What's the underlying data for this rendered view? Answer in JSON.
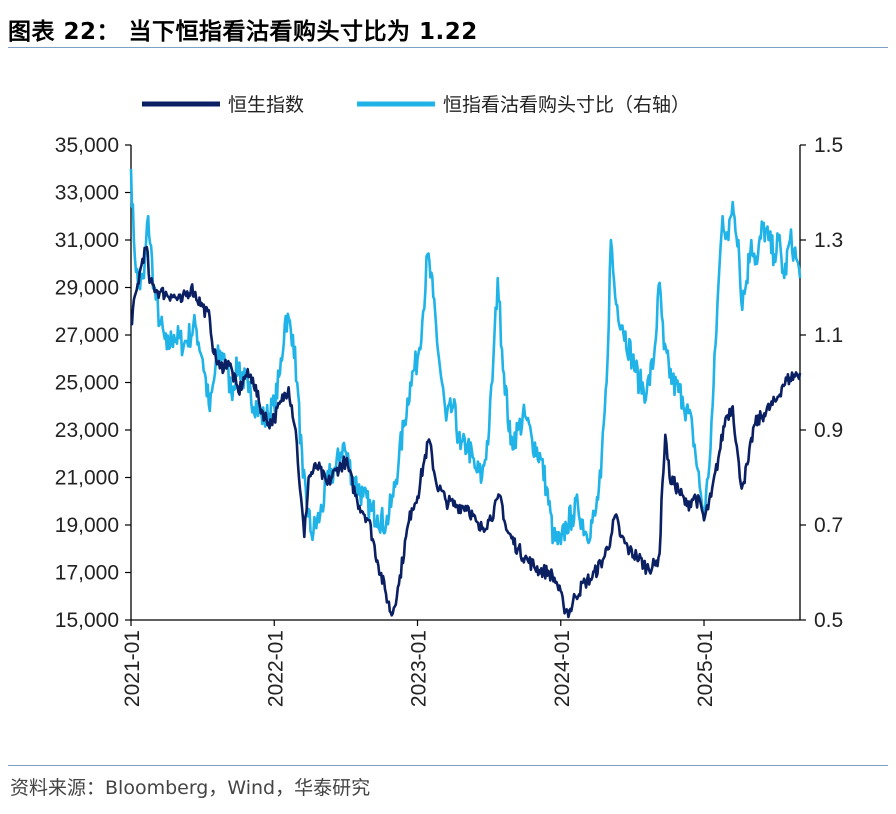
{
  "header": {
    "title": "图表 22：   当下恒指看沽看购头寸比为 1.22"
  },
  "source": "资料来源：Bloomberg，Wind，华泰研究",
  "colors": {
    "hsi": "#0b1f63",
    "ratio": "#1fb3e8",
    "axis": "#000000"
  },
  "chart_data": {
    "type": "line",
    "title": "当下恒指看沽看购头寸比为 1.22",
    "legend": [
      "恒生指数",
      "恒指看沽看购头寸比（右轴）"
    ],
    "legend_position": "top",
    "x_ticks": [
      "2021-01",
      "2022-01",
      "2023-01",
      "2024-01",
      "2025-01"
    ],
    "x_range": [
      2021.0,
      2025.67
    ],
    "y_left": {
      "range": [
        15000,
        35000
      ],
      "ticks": [
        15000,
        17000,
        19000,
        21000,
        23000,
        25000,
        27000,
        29000,
        31000,
        33000,
        35000
      ],
      "tick_labels": [
        "15,000",
        "17,000",
        "19,000",
        "21,000",
        "23,000",
        "25,000",
        "27,000",
        "29,000",
        "31,000",
        "33,000",
        "35,000"
      ]
    },
    "y_right": {
      "range": [
        0.5,
        1.5
      ],
      "ticks": [
        0.5,
        0.7,
        0.9,
        1.1,
        1.3,
        1.5
      ],
      "tick_labels": [
        "0.5",
        "0.7",
        "0.9",
        "1.1",
        "1.3",
        "1.5"
      ]
    },
    "series": [
      {
        "name": "恒生指数",
        "axis": "left",
        "points": [
          [
            2021.0,
            27500
          ],
          [
            2021.04,
            28900
          ],
          [
            2021.08,
            30200
          ],
          [
            2021.11,
            30700
          ],
          [
            2021.13,
            29200
          ],
          [
            2021.2,
            28800
          ],
          [
            2021.28,
            28700
          ],
          [
            2021.35,
            28400
          ],
          [
            2021.42,
            29000
          ],
          [
            2021.5,
            28200
          ],
          [
            2021.55,
            27700
          ],
          [
            2021.58,
            26200
          ],
          [
            2021.62,
            25600
          ],
          [
            2021.68,
            25900
          ],
          [
            2021.75,
            24600
          ],
          [
            2021.8,
            25300
          ],
          [
            2021.85,
            25200
          ],
          [
            2021.9,
            24000
          ],
          [
            2021.96,
            23300
          ],
          [
            2022.0,
            23500
          ],
          [
            2022.05,
            24200
          ],
          [
            2022.1,
            24800
          ],
          [
            2022.15,
            23000
          ],
          [
            2022.18,
            20500
          ],
          [
            2022.21,
            18500
          ],
          [
            2022.24,
            21000
          ],
          [
            2022.3,
            21500
          ],
          [
            2022.37,
            20700
          ],
          [
            2022.43,
            21300
          ],
          [
            2022.5,
            21700
          ],
          [
            2022.58,
            20000
          ],
          [
            2022.66,
            19200
          ],
          [
            2022.72,
            17500
          ],
          [
            2022.78,
            16100
          ],
          [
            2022.82,
            15200
          ],
          [
            2022.87,
            16500
          ],
          [
            2022.92,
            18500
          ],
          [
            2022.96,
            19700
          ],
          [
            2023.0,
            20200
          ],
          [
            2023.04,
            21500
          ],
          [
            2023.08,
            22600
          ],
          [
            2023.13,
            20800
          ],
          [
            2023.2,
            20000
          ],
          [
            2023.28,
            19800
          ],
          [
            2023.35,
            19800
          ],
          [
            2023.43,
            18800
          ],
          [
            2023.5,
            19200
          ],
          [
            2023.58,
            20200
          ],
          [
            2023.62,
            18800
          ],
          [
            2023.7,
            18000
          ],
          [
            2023.77,
            17500
          ],
          [
            2023.85,
            17100
          ],
          [
            2023.92,
            17000
          ],
          [
            2023.97,
            16600
          ],
          [
            2024.02,
            15600
          ],
          [
            2024.06,
            15300
          ],
          [
            2024.1,
            16000
          ],
          [
            2024.17,
            16600
          ],
          [
            2024.22,
            16800
          ],
          [
            2024.3,
            17600
          ],
          [
            2024.35,
            18500
          ],
          [
            2024.38,
            19400
          ],
          [
            2024.42,
            18500
          ],
          [
            2024.48,
            17900
          ],
          [
            2024.53,
            17700
          ],
          [
            2024.6,
            17200
          ],
          [
            2024.66,
            17300
          ],
          [
            2024.69,
            17800
          ],
          [
            2024.71,
            20800
          ],
          [
            2024.73,
            22800
          ],
          [
            2024.76,
            21000
          ],
          [
            2024.82,
            20500
          ],
          [
            2024.88,
            19800
          ],
          [
            2024.93,
            20200
          ],
          [
            2024.98,
            19800
          ],
          [
            2025.0,
            19200
          ],
          [
            2025.05,
            20200
          ],
          [
            2025.1,
            21800
          ],
          [
            2025.15,
            23500
          ],
          [
            2025.2,
            24000
          ],
          [
            2025.25,
            21000
          ],
          [
            2025.27,
            20700
          ],
          [
            2025.31,
            21700
          ],
          [
            2025.35,
            23200
          ],
          [
            2025.42,
            23700
          ],
          [
            2025.5,
            24200
          ],
          [
            2025.55,
            24900
          ],
          [
            2025.6,
            25200
          ],
          [
            2025.67,
            25400
          ]
        ]
      },
      {
        "name": "恒指看沽看购头寸比（右轴）",
        "axis": "right",
        "points": [
          [
            2021.0,
            1.45
          ],
          [
            2021.02,
            1.3
          ],
          [
            2021.05,
            1.2
          ],
          [
            2021.09,
            1.22
          ],
          [
            2021.12,
            1.35
          ],
          [
            2021.16,
            1.2
          ],
          [
            2021.2,
            1.13
          ],
          [
            2021.25,
            1.07
          ],
          [
            2021.3,
            1.1
          ],
          [
            2021.37,
            1.08
          ],
          [
            2021.45,
            1.12
          ],
          [
            2021.5,
            1.05
          ],
          [
            2021.55,
            0.94
          ],
          [
            2021.6,
            1.05
          ],
          [
            2021.65,
            1.06
          ],
          [
            2021.7,
            0.98
          ],
          [
            2021.75,
            1.04
          ],
          [
            2021.82,
            0.98
          ],
          [
            2021.88,
            0.95
          ],
          [
            2021.93,
            0.92
          ],
          [
            2022.0,
            0.95
          ],
          [
            2022.04,
            1.02
          ],
          [
            2022.08,
            1.14
          ],
          [
            2022.13,
            1.1
          ],
          [
            2022.16,
            1.0
          ],
          [
            2022.2,
            0.8
          ],
          [
            2022.26,
            0.68
          ],
          [
            2022.32,
            0.72
          ],
          [
            2022.38,
            0.8
          ],
          [
            2022.43,
            0.82
          ],
          [
            2022.48,
            0.87
          ],
          [
            2022.55,
            0.8
          ],
          [
            2022.62,
            0.76
          ],
          [
            2022.68,
            0.73
          ],
          [
            2022.72,
            0.72
          ],
          [
            2022.78,
            0.7
          ],
          [
            2022.83,
            0.76
          ],
          [
            2022.87,
            0.84
          ],
          [
            2022.91,
            0.92
          ],
          [
            2022.95,
            1.0
          ],
          [
            2023.0,
            1.05
          ],
          [
            2023.04,
            1.15
          ],
          [
            2023.07,
            1.27
          ],
          [
            2023.11,
            1.18
          ],
          [
            2023.15,
            1.05
          ],
          [
            2023.2,
            0.92
          ],
          [
            2023.25,
            0.95
          ],
          [
            2023.3,
            0.86
          ],
          [
            2023.35,
            0.87
          ],
          [
            2023.4,
            0.82
          ],
          [
            2023.45,
            0.8
          ],
          [
            2023.5,
            0.9
          ],
          [
            2023.53,
            1.05
          ],
          [
            2023.56,
            1.22
          ],
          [
            2023.59,
            1.07
          ],
          [
            2023.65,
            0.87
          ],
          [
            2023.7,
            0.9
          ],
          [
            2023.75,
            0.93
          ],
          [
            2023.8,
            0.88
          ],
          [
            2023.86,
            0.84
          ],
          [
            2023.9,
            0.78
          ],
          [
            2023.95,
            0.67
          ],
          [
            2024.0,
            0.66
          ],
          [
            2024.04,
            0.7
          ],
          [
            2024.08,
            0.72
          ],
          [
            2024.12,
            0.74
          ],
          [
            2024.18,
            0.68
          ],
          [
            2024.24,
            0.72
          ],
          [
            2024.28,
            0.8
          ],
          [
            2024.32,
            1.0
          ],
          [
            2024.35,
            1.3
          ],
          [
            2024.38,
            1.18
          ],
          [
            2024.43,
            1.12
          ],
          [
            2024.5,
            1.05
          ],
          [
            2024.55,
            1.0
          ],
          [
            2024.6,
            0.98
          ],
          [
            2024.65,
            1.05
          ],
          [
            2024.69,
            1.21
          ],
          [
            2024.72,
            1.07
          ],
          [
            2024.78,
            1.0
          ],
          [
            2024.85,
            0.97
          ],
          [
            2024.92,
            0.9
          ],
          [
            2024.97,
            0.78
          ],
          [
            2025.0,
            0.72
          ],
          [
            2025.03,
            0.8
          ],
          [
            2025.06,
            0.95
          ],
          [
            2025.1,
            1.2
          ],
          [
            2025.13,
            1.35
          ],
          [
            2025.17,
            1.3
          ],
          [
            2025.2,
            1.38
          ],
          [
            2025.24,
            1.3
          ],
          [
            2025.26,
            1.17
          ],
          [
            2025.29,
            1.2
          ],
          [
            2025.33,
            1.3
          ],
          [
            2025.37,
            1.25
          ],
          [
            2025.41,
            1.33
          ],
          [
            2025.45,
            1.3
          ],
          [
            2025.49,
            1.27
          ],
          [
            2025.52,
            1.3
          ],
          [
            2025.56,
            1.22
          ],
          [
            2025.6,
            1.3
          ],
          [
            2025.63,
            1.28
          ],
          [
            2025.67,
            1.22
          ]
        ]
      }
    ]
  }
}
